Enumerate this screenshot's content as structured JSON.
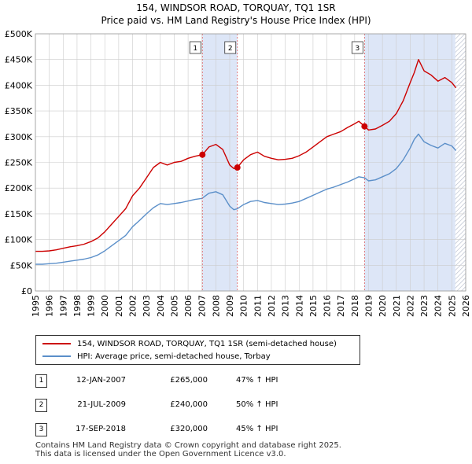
{
  "header": {
    "title": "154, WINDSOR ROAD, TORQUAY, TQ1 1SR",
    "subtitle": "Price paid vs. HM Land Registry's House Price Index (HPI)"
  },
  "colors": {
    "property": "#cc0000",
    "hpi": "#5b8fc9",
    "shade": "#dde6f7",
    "hatch": "#b0b8c8",
    "grid": "#cccccc",
    "marker_line": "#e06060"
  },
  "chart_data": {
    "type": "line",
    "title": "154, WINDSOR ROAD, TORQUAY, TQ1 1SR",
    "xlabel": "",
    "ylabel": "",
    "xlim": [
      1995,
      2026
    ],
    "ylim": [
      0,
      500000
    ],
    "x_ticks": [
      1995,
      1996,
      1997,
      1998,
      1999,
      2000,
      2001,
      2002,
      2003,
      2004,
      2005,
      2006,
      2007,
      2008,
      2009,
      2010,
      2011,
      2012,
      2013,
      2014,
      2015,
      2016,
      2017,
      2018,
      2019,
      2020,
      2021,
      2022,
      2023,
      2024,
      2025,
      2026
    ],
    "y_ticks": [
      0,
      50000,
      100000,
      150000,
      200000,
      250000,
      300000,
      350000,
      400000,
      450000,
      500000
    ],
    "y_tick_labels": [
      "£0",
      "£50K",
      "£100K",
      "£150K",
      "£200K",
      "£250K",
      "£300K",
      "£350K",
      "£400K",
      "£450K",
      "£500K"
    ],
    "grid": true,
    "shaded_periods": [
      [
        2007.03,
        2009.55
      ],
      [
        2018.71,
        2026
      ]
    ],
    "hatched_from": 2025.25,
    "series": [
      {
        "name": "154, WINDSOR ROAD, TORQUAY, TQ1 1SR (semi-detached house)",
        "x": [
          1995,
          1995.5,
          1996,
          1996.5,
          1997,
          1997.5,
          1998,
          1998.5,
          1999,
          1999.5,
          2000,
          2000.5,
          2001,
          2001.5,
          2002,
          2002.5,
          2003,
          2003.5,
          2004,
          2004.5,
          2005,
          2005.5,
          2006,
          2006.5,
          2007.03,
          2007.5,
          2008,
          2008.5,
          2009,
          2009.3,
          2009.55,
          2010,
          2010.5,
          2011,
          2011.5,
          2012,
          2012.5,
          2013,
          2013.5,
          2014,
          2014.5,
          2015,
          2015.5,
          2016,
          2016.5,
          2017,
          2017.5,
          2018,
          2018.3,
          2018.71,
          2019,
          2019.5,
          2020,
          2020.5,
          2021,
          2021.5,
          2022,
          2022.3,
          2022.6,
          2023,
          2023.5,
          2024,
          2024.5,
          2025,
          2025.3
        ],
        "values": [
          77000,
          77000,
          78000,
          80000,
          83000,
          86000,
          88000,
          91000,
          96000,
          103000,
          115000,
          130000,
          145000,
          160000,
          185000,
          200000,
          220000,
          240000,
          250000,
          245000,
          250000,
          252000,
          258000,
          262000,
          265000,
          280000,
          285000,
          275000,
          245000,
          238000,
          240000,
          255000,
          265000,
          270000,
          262000,
          258000,
          255000,
          256000,
          258000,
          263000,
          270000,
          280000,
          290000,
          300000,
          305000,
          310000,
          318000,
          325000,
          330000,
          320000,
          313000,
          315000,
          322000,
          330000,
          345000,
          370000,
          405000,
          425000,
          450000,
          428000,
          420000,
          408000,
          415000,
          405000,
          395000
        ]
      },
      {
        "name": "HPI: Average price, semi-detached house, Torbay",
        "x": [
          1995,
          1995.5,
          1996,
          1996.5,
          1997,
          1997.5,
          1998,
          1998.5,
          1999,
          1999.5,
          2000,
          2000.5,
          2001,
          2001.5,
          2002,
          2002.5,
          2003,
          2003.5,
          2004,
          2004.5,
          2005,
          2005.5,
          2006,
          2006.5,
          2007,
          2007.5,
          2008,
          2008.5,
          2009,
          2009.3,
          2009.55,
          2010,
          2010.5,
          2011,
          2011.5,
          2012,
          2012.5,
          2013,
          2013.5,
          2014,
          2014.5,
          2015,
          2015.5,
          2016,
          2016.5,
          2017,
          2017.5,
          2018,
          2018.3,
          2018.71,
          2019,
          2019.5,
          2020,
          2020.5,
          2021,
          2021.5,
          2022,
          2022.3,
          2022.6,
          2023,
          2023.5,
          2024,
          2024.5,
          2025,
          2025.3
        ],
        "values": [
          52000,
          52000,
          53000,
          54000,
          56000,
          58000,
          60000,
          62000,
          65000,
          70000,
          78000,
          88000,
          98000,
          108000,
          125000,
          137000,
          150000,
          162000,
          170000,
          168000,
          170000,
          172000,
          175000,
          178000,
          180000,
          190000,
          193000,
          187000,
          165000,
          158000,
          160000,
          168000,
          174000,
          176000,
          172000,
          170000,
          168000,
          169000,
          171000,
          174000,
          180000,
          186000,
          192000,
          198000,
          202000,
          207000,
          212000,
          218000,
          222000,
          220000,
          214000,
          216000,
          222000,
          228000,
          238000,
          255000,
          278000,
          295000,
          305000,
          290000,
          283000,
          278000,
          287000,
          282000,
          273000
        ]
      }
    ],
    "sales": [
      {
        "num": "1",
        "x": 2007.03,
        "value": 265000
      },
      {
        "num": "2",
        "x": 2009.55,
        "value": 240000
      },
      {
        "num": "3",
        "x": 2018.71,
        "value": 320000
      }
    ]
  },
  "legend": {
    "property_label": "154, WINDSOR ROAD, TORQUAY, TQ1 1SR (semi-detached house)",
    "hpi_label": "HPI: Average price, semi-detached house, Torbay"
  },
  "transactions": [
    {
      "num": "1",
      "date": "12-JAN-2007",
      "price": "£265,000",
      "hpi": "47% ↑ HPI"
    },
    {
      "num": "2",
      "date": "21-JUL-2009",
      "price": "£240,000",
      "hpi": "50% ↑ HPI"
    },
    {
      "num": "3",
      "date": "17-SEP-2018",
      "price": "£320,000",
      "hpi": "45% ↑ HPI"
    }
  ],
  "footer": {
    "line1": "Contains HM Land Registry data © Crown copyright and database right 2025.",
    "line2": "This data is licensed under the Open Government Licence v3.0."
  }
}
